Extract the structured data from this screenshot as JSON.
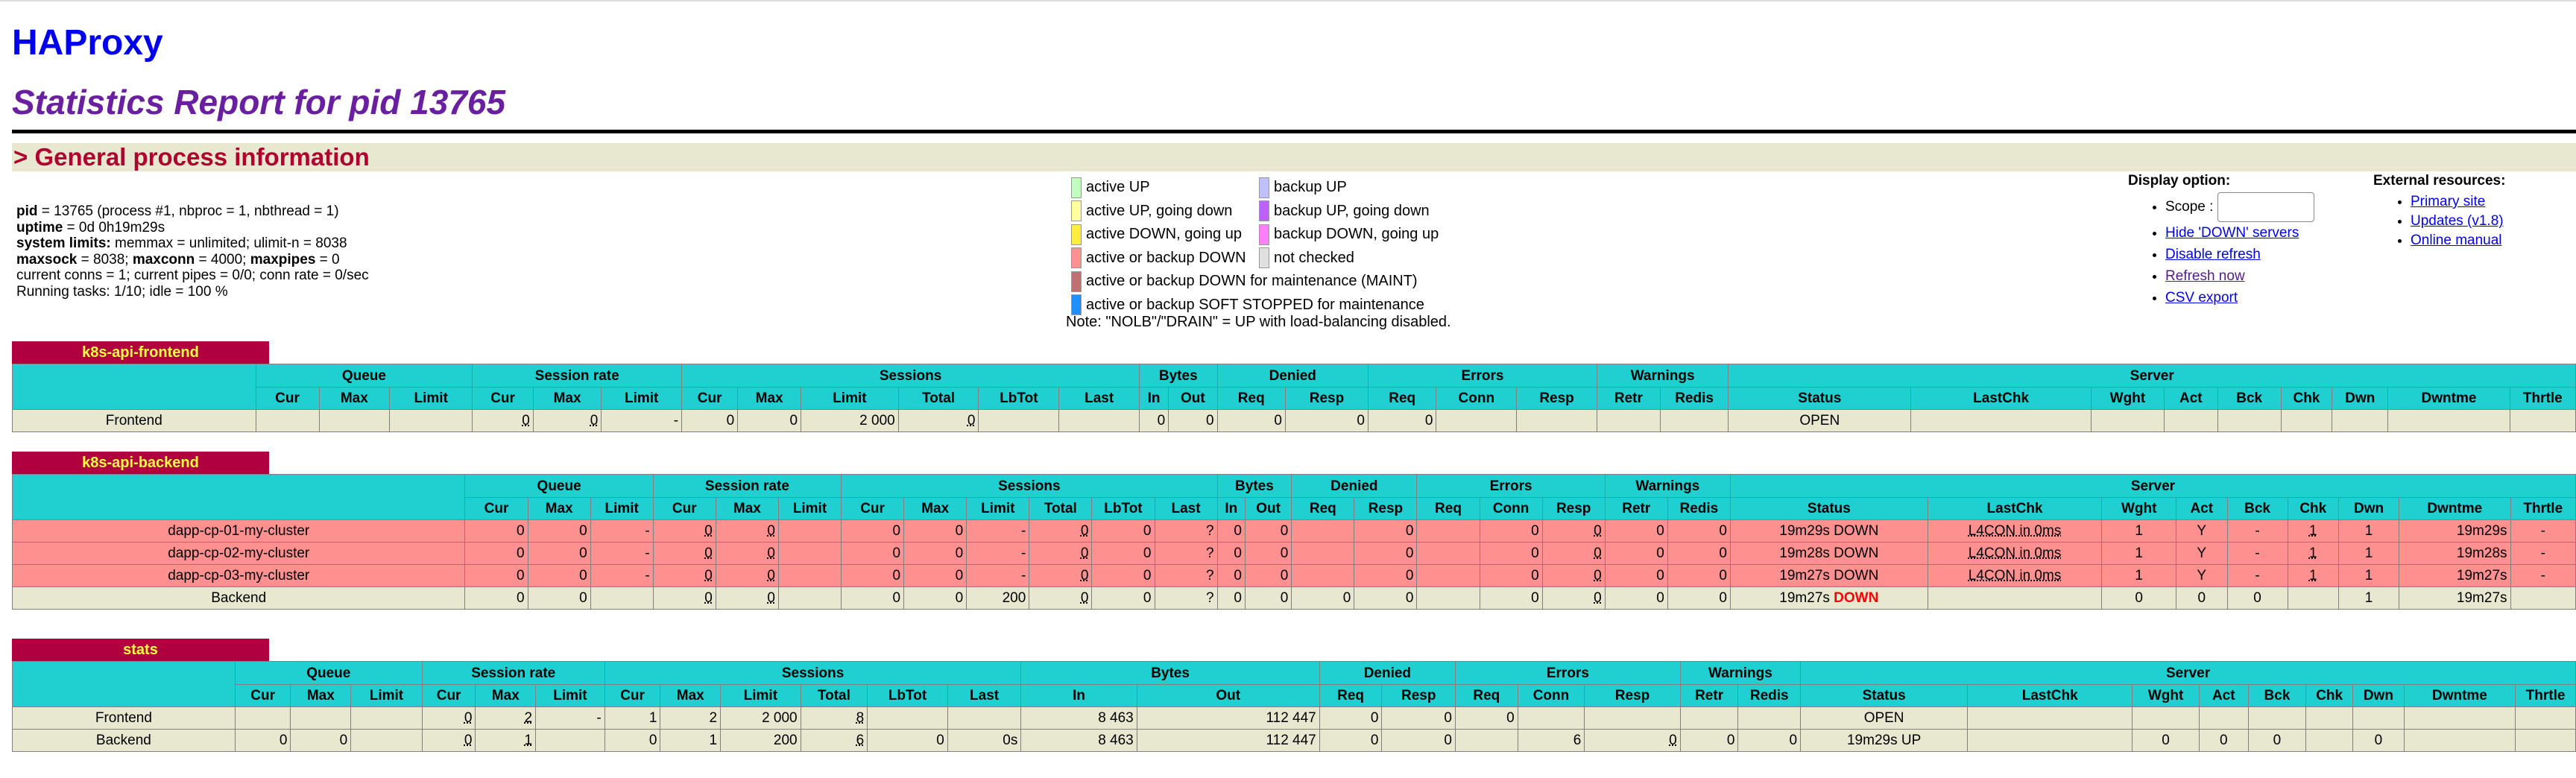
{
  "header": {
    "app": "HAProxy",
    "report": "Statistics Report for pid 13765",
    "section": "> General process information"
  },
  "process_info": {
    "pid_label": "pid",
    "pid_text": " = 13765 (process #1, nbproc = 1, nbthread = 1)",
    "uptime_label": "uptime",
    "uptime_text": " = 0d 0h19m29s",
    "syslimits_label": "system limits:",
    "syslimits_text": " memmax = unlimited; ulimit-n = 8038",
    "maxsock_label": "maxsock",
    "maxsock_text": " = 8038; ",
    "maxconn_label": "maxconn",
    "maxconn_text": " = 4000; ",
    "maxpipes_label": "maxpipes",
    "maxpipes_text": " = 0",
    "conns_line": "current conns = 1; current pipes = 0/0; conn rate = 0/sec",
    "tasks_line": "Running tasks: 1/10; idle = 100 %"
  },
  "legend": {
    "items": [
      {
        "label": "active UP",
        "color": "#c0ffc0"
      },
      {
        "label": "backup UP",
        "color": "#c0c0ff"
      },
      {
        "label": "active UP, going down",
        "color": "#ffffa0"
      },
      {
        "label": "backup UP, going down",
        "color": "#c060ff"
      },
      {
        "label": "active DOWN, going up",
        "color": "#ffee40"
      },
      {
        "label": "backup DOWN, going up",
        "color": "#ff80ff"
      },
      {
        "label": "active or backup DOWN",
        "color": "#ff9090"
      },
      {
        "label": "not checked",
        "color": "#e0e0e0"
      },
      {
        "label": "active or backup DOWN for maintenance (MAINT)",
        "color": "#c07070"
      },
      {
        "label": "active or backup SOFT STOPPED for maintenance",
        "color": "#2090ff"
      }
    ],
    "note": "Note: \"NOLB\"/\"DRAIN\" = UP with load-balancing disabled."
  },
  "display_options": {
    "title": "Display option:",
    "scope_label": "Scope :",
    "scope_value": "",
    "links": [
      "Hide 'DOWN' servers",
      "Disable refresh",
      "Refresh now",
      "CSV export"
    ]
  },
  "external_resources": {
    "title": "External resources:",
    "links": [
      "Primary site",
      "Updates (v1.8)",
      "Online manual"
    ]
  },
  "proxies": [
    {
      "name": "k8s-api-frontend",
      "groups": [
        "",
        "Queue",
        "Session rate",
        "Sessions",
        "Bytes",
        "Denied",
        "Errors",
        "Warnings",
        "Server"
      ],
      "cols": [
        "",
        "Cur",
        "Max",
        "Limit",
        "Cur",
        "Max",
        "Limit",
        "Cur",
        "Max",
        "Limit",
        "Total",
        "LbTot",
        "Last",
        "In",
        "Out",
        "Req",
        "Resp",
        "Req",
        "Conn",
        "Resp",
        "Retr",
        "Redis",
        "Status",
        "LastChk",
        "Wght",
        "Act",
        "Bck",
        "Chk",
        "Dwn",
        "Dwntme",
        "Thrtle"
      ],
      "rows": [
        {
          "type": "frontend",
          "cells": [
            "Frontend",
            "",
            "",
            "",
            "0",
            "0",
            "-",
            "0",
            "0",
            "2 000",
            "0",
            "",
            "",
            "0",
            "0",
            "0",
            "0",
            "0",
            "",
            "",
            "",
            "",
            "OPEN",
            "",
            "",
            "",
            "",
            "",
            "",
            "",
            ""
          ]
        }
      ]
    },
    {
      "name": "k8s-api-backend",
      "groups": [
        "",
        "Queue",
        "Session rate",
        "Sessions",
        "Bytes",
        "Denied",
        "Errors",
        "Warnings",
        "Server"
      ],
      "cols": [
        "",
        "Cur",
        "Max",
        "Limit",
        "Cur",
        "Max",
        "Limit",
        "Cur",
        "Max",
        "Limit",
        "Total",
        "LbTot",
        "Last",
        "In",
        "Out",
        "Req",
        "Resp",
        "Req",
        "Conn",
        "Resp",
        "Retr",
        "Redis",
        "Status",
        "LastChk",
        "Wght",
        "Act",
        "Bck",
        "Chk",
        "Dwn",
        "Dwntme",
        "Thrtle"
      ],
      "rows": [
        {
          "type": "down",
          "cells": [
            "dapp-cp-01-my-cluster",
            "0",
            "0",
            "-",
            "0",
            "0",
            "",
            "0",
            "0",
            "-",
            "0",
            "0",
            "?",
            "0",
            "0",
            "",
            "0",
            "",
            "0",
            "0",
            "0",
            "0",
            "19m29s DOWN",
            "L4CON in 0ms",
            "1",
            "Y",
            "-",
            "1",
            "1",
            "19m29s",
            "-"
          ]
        },
        {
          "type": "down",
          "cells": [
            "dapp-cp-02-my-cluster",
            "0",
            "0",
            "-",
            "0",
            "0",
            "",
            "0",
            "0",
            "-",
            "0",
            "0",
            "?",
            "0",
            "0",
            "",
            "0",
            "",
            "0",
            "0",
            "0",
            "0",
            "19m28s DOWN",
            "L4CON in 0ms",
            "1",
            "Y",
            "-",
            "1",
            "1",
            "19m28s",
            "-"
          ]
        },
        {
          "type": "down",
          "cells": [
            "dapp-cp-03-my-cluster",
            "0",
            "0",
            "-",
            "0",
            "0",
            "",
            "0",
            "0",
            "-",
            "0",
            "0",
            "?",
            "0",
            "0",
            "",
            "0",
            "",
            "0",
            "0",
            "0",
            "0",
            "19m27s DOWN",
            "L4CON in 0ms",
            "1",
            "Y",
            "-",
            "1",
            "1",
            "19m27s",
            "-"
          ]
        },
        {
          "type": "backend",
          "cells": [
            "Backend",
            "0",
            "0",
            "",
            "0",
            "0",
            "",
            "0",
            "0",
            "200",
            "0",
            "0",
            "?",
            "0",
            "0",
            "0",
            "0",
            "",
            "0",
            "0",
            "0",
            "0",
            "19m27s DOWN",
            "",
            "0",
            "0",
            "0",
            "",
            "1",
            "19m27s",
            ""
          ]
        }
      ]
    },
    {
      "name": "stats",
      "groups": [
        "",
        "Queue",
        "Session rate",
        "Sessions",
        "Bytes",
        "Denied",
        "Errors",
        "Warnings",
        "Server"
      ],
      "cols": [
        "",
        "Cur",
        "Max",
        "Limit",
        "Cur",
        "Max",
        "Limit",
        "Cur",
        "Max",
        "Limit",
        "Total",
        "LbTot",
        "Last",
        "In",
        "Out",
        "Req",
        "Resp",
        "Req",
        "Conn",
        "Resp",
        "Retr",
        "Redis",
        "Status",
        "LastChk",
        "Wght",
        "Act",
        "Bck",
        "Chk",
        "Dwn",
        "Dwntme",
        "Thrtle"
      ],
      "rows": [
        {
          "type": "frontend",
          "cells": [
            "Frontend",
            "",
            "",
            "",
            "0",
            "2",
            "-",
            "1",
            "2",
            "2 000",
            "8",
            "",
            "",
            "8 463",
            "112 447",
            "0",
            "0",
            "0",
            "",
            "",
            "",
            "",
            "OPEN",
            "",
            "",
            "",
            "",
            "",
            "",
            "",
            ""
          ]
        },
        {
          "type": "backend",
          "cells": [
            "Backend",
            "0",
            "0",
            "",
            "0",
            "1",
            "",
            "0",
            "1",
            "200",
            "6",
            "0",
            "0s",
            "8 463",
            "112 447",
            "0",
            "0",
            "",
            "6",
            "0",
            "0",
            "0",
            "19m29s UP",
            "",
            "0",
            "0",
            "0",
            "",
            "0",
            "",
            ""
          ]
        }
      ]
    }
  ]
}
